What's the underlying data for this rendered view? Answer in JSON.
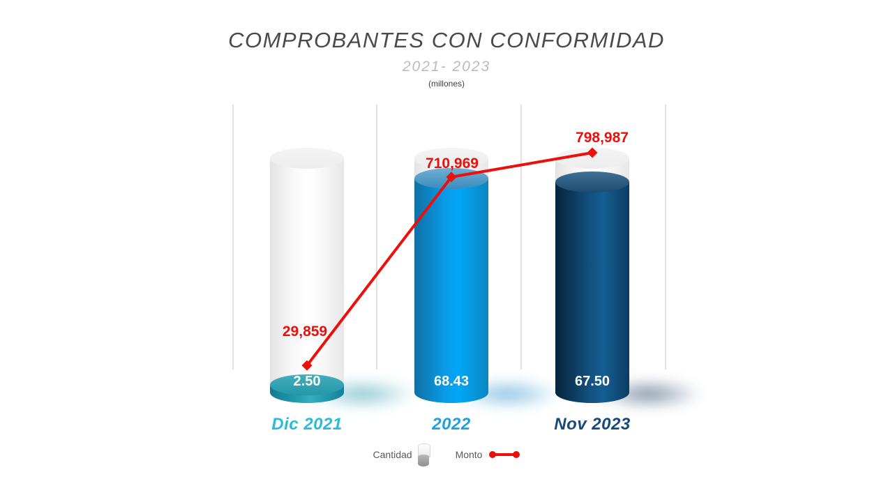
{
  "title": "COMPROBANTES CON CONFORMIDAD",
  "subtitle": "2021- 2023",
  "units": "(millones)",
  "legend": {
    "cantidad_label": "Cantidad",
    "monto_label": "Monto"
  },
  "colors": {
    "monto_red": "#ec0f0a",
    "bar_teal": "#2aa4b8",
    "bar_blue": "#01a7f7",
    "bar_navy": "#114f7e",
    "ghost_gray": "#f1f1f1",
    "cat_dic2021": "#27bdda",
    "cat_2022": "#1aa0e5",
    "cat_nov2023": "#17497a",
    "title_gray": "#4a4a4a",
    "subtitle_gray": "#bcbcbc"
  },
  "chart_data": {
    "type": "bar",
    "subtype": "cylinder-bars-with-line-overlay",
    "title": "COMPROBANTES CON CONFORMIDAD",
    "subtitle": "2021- 2023",
    "units_note": "(millones)",
    "categories": [
      "Dic 2021",
      "2022",
      "Nov 2023"
    ],
    "series": [
      {
        "name": "Cantidad",
        "type": "cylinder-bar",
        "values": [
          2.5,
          68.43,
          67.5
        ],
        "labels": [
          "2.50",
          "68.43",
          "67.50"
        ]
      },
      {
        "name": "Monto",
        "type": "line",
        "values": [
          29859,
          710969,
          798987
        ],
        "labels": [
          "29,859",
          "710,969",
          "798,987"
        ]
      }
    ],
    "cantidad_axis_max": 75,
    "grid": "vertical-only",
    "legend_position": "bottom-center"
  }
}
